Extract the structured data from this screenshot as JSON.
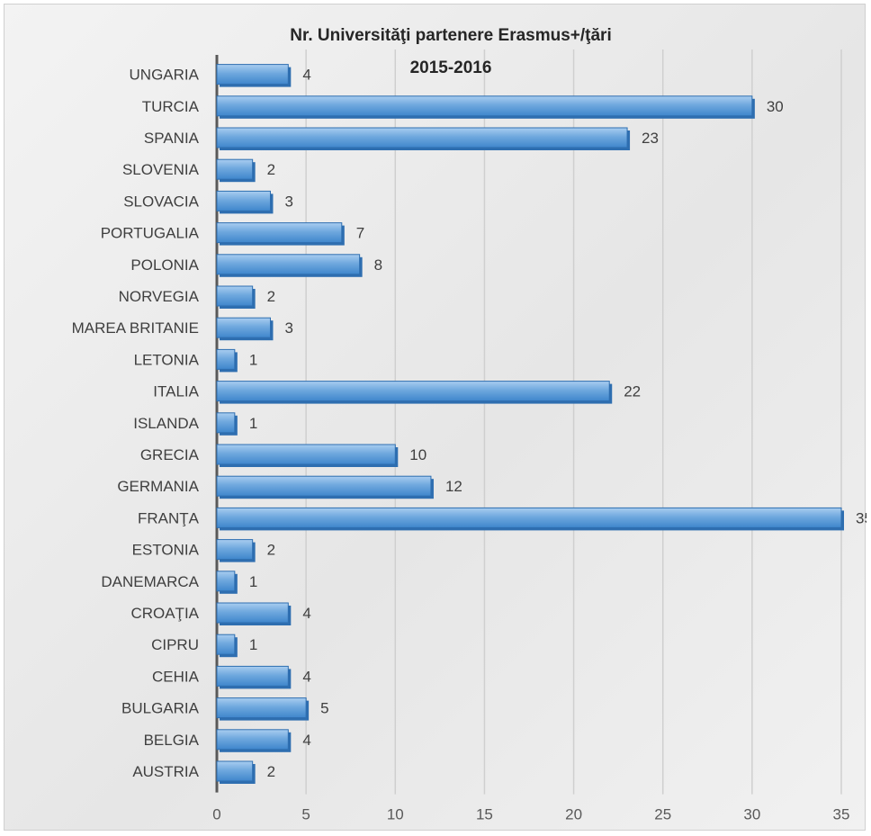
{
  "chart_data": {
    "type": "bar",
    "orientation": "horizontal",
    "title_line1": "Nr. Universităţi partenere Erasmus+/ţări",
    "title_line2": "2015-2016",
    "xlabel": "",
    "ylabel": "",
    "categories": [
      "UNGARIA",
      "TURCIA",
      "SPANIA",
      "SLOVENIA",
      "SLOVACIA",
      "PORTUGALIA",
      "POLONIA",
      "NORVEGIA",
      "MAREA BRITANIE",
      "LETONIA",
      "ITALIA",
      "ISLANDA",
      "GRECIA",
      "GERMANIA",
      "FRANŢA",
      "ESTONIA",
      "DANEMARCA",
      "CROAŢIA",
      "CIPRU",
      "CEHIA",
      "BULGARIA",
      "BELGIA",
      "AUSTRIA"
    ],
    "values": [
      4,
      30,
      23,
      2,
      3,
      7,
      8,
      2,
      3,
      1,
      22,
      1,
      10,
      12,
      35,
      2,
      1,
      4,
      1,
      4,
      5,
      4,
      2
    ],
    "xlim": [
      0,
      35
    ],
    "xticks": [
      0,
      5,
      10,
      15,
      20,
      25,
      30,
      35
    ],
    "grid": "vertical",
    "legend": "none",
    "bar_color": "#5b9bd5",
    "bar_dark": "#2e6eb0"
  }
}
